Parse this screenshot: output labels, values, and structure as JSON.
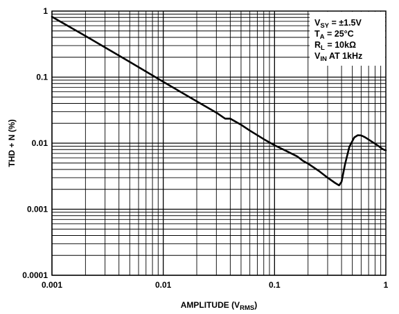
{
  "chart_data": {
    "type": "line",
    "x_scale": "log",
    "y_scale": "log",
    "xlim": [
      0.001,
      1
    ],
    "ylim": [
      0.0001,
      1
    ],
    "grid": true,
    "xlabel": {
      "main": "AMPLITUDE (V",
      "sub": "RMS",
      "close": ")"
    },
    "ylabel": "THD + N (%)",
    "x_ticks": [
      "0.001",
      "0.01",
      "0.1",
      "1"
    ],
    "y_ticks": [
      "1",
      "0.1",
      "0.01",
      "0.001",
      "0.0001"
    ],
    "annotations": [
      {
        "main": "V",
        "sub": "SY",
        "rest": " = ±1.5V"
      },
      {
        "main": "T",
        "sub": "A",
        "rest": " = 25°C"
      },
      {
        "main": "R",
        "sub": "L",
        "rest": " = 10kΩ"
      },
      {
        "main": "V",
        "sub": "IN",
        "rest": " AT 1kHz"
      }
    ],
    "legend_position": "top-right",
    "line_color": "#000000",
    "series": [
      {
        "x": [
          0.001,
          0.002,
          0.005,
          0.01,
          0.02,
          0.03,
          0.036,
          0.04,
          0.05,
          0.06,
          0.08,
          0.1,
          0.13,
          0.16,
          0.18,
          0.2,
          0.25,
          0.3,
          0.35,
          0.38,
          0.4,
          0.43,
          0.47,
          0.52,
          0.56,
          0.6,
          0.65,
          0.72,
          0.8,
          0.88,
          0.93,
          0.97,
          1.0
        ],
        "y": [
          0.82,
          0.42,
          0.17,
          0.085,
          0.043,
          0.029,
          0.0235,
          0.0235,
          0.019,
          0.0155,
          0.0115,
          0.0093,
          0.0075,
          0.0063,
          0.0054,
          0.0049,
          0.0038,
          0.003,
          0.0025,
          0.0023,
          0.0026,
          0.0048,
          0.0088,
          0.0122,
          0.0132,
          0.0131,
          0.0123,
          0.011,
          0.0098,
          0.0088,
          0.0082,
          0.0079,
          0.0078
        ]
      }
    ]
  }
}
